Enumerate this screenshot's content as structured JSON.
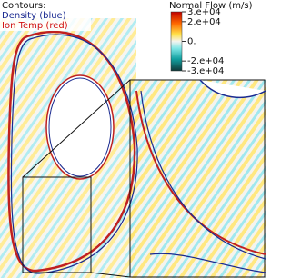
{
  "legend": {
    "heading": "Contours:",
    "density": "Density (blue)",
    "ion_temp": "Ion Temp (red)"
  },
  "colorbar": {
    "title": "Normal Flow (m/s)",
    "lim": [
      -30000,
      30000
    ],
    "ticks": [
      {
        "value": 30000,
        "label": "3.e+04"
      },
      {
        "value": 20000,
        "label": "2.e+04"
      },
      {
        "value": 0,
        "label": "0."
      },
      {
        "value": -20000,
        "label": "-2.e+04"
      },
      {
        "value": -30000,
        "label": "-3.e+04"
      }
    ]
  }
}
